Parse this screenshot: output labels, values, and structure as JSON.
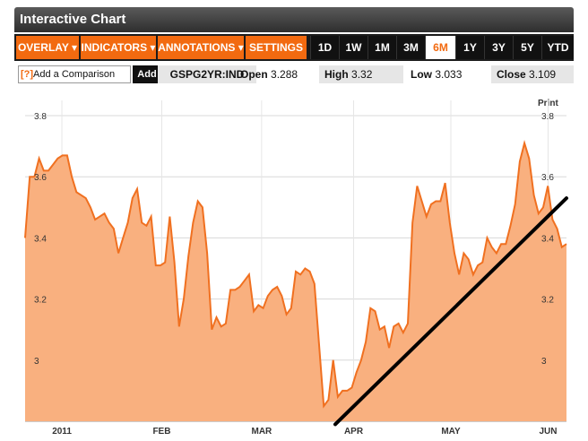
{
  "header": {
    "title": "Interactive Chart"
  },
  "toolbar": {
    "menus": [
      {
        "label": "OVERLAY ▾"
      },
      {
        "label": "INDICATORS ▾"
      },
      {
        "label": "ANNOTATIONS ▾"
      },
      {
        "label": "SETTINGS ▾"
      }
    ],
    "ranges": [
      "1D",
      "1W",
      "1M",
      "3M",
      "6M",
      "1Y",
      "3Y",
      "5Y",
      "YTD"
    ],
    "active_range": "6M"
  },
  "comparison": {
    "prefix": "[?]",
    "placeholder": "Add a Comparison",
    "add_label": "Add"
  },
  "quote": {
    "ticker": "GSPG2YR:IND",
    "open_label": "Open",
    "open": "3.288",
    "high_label": "High",
    "high": "3.32",
    "low_label": "Low",
    "low": "3.033",
    "close_label": "Close",
    "close": "3.109"
  },
  "print_label": "Print",
  "colors": {
    "accent": "#f26a10",
    "area_fill": "#f9b07f",
    "line": "#f07020",
    "trendline": "#000000"
  },
  "chart_data": {
    "type": "area",
    "y_ticks": [
      "3",
      "3.2",
      "3.4",
      "3.6",
      "3.8"
    ],
    "ylim": [
      2.8,
      3.85
    ],
    "x_labels": [
      "2011",
      "FEB",
      "MAR",
      "APR",
      "MAY",
      "JUN"
    ],
    "x_label_positions": [
      7,
      26,
      45,
      62.5,
      81,
      99.5
    ],
    "xlim": [
      0,
      103
    ],
    "grid": true,
    "values": [
      3.4,
      3.6,
      3.6,
      3.66,
      3.62,
      3.62,
      3.64,
      3.66,
      3.67,
      3.67,
      3.6,
      3.55,
      3.54,
      3.53,
      3.5,
      3.46,
      3.47,
      3.48,
      3.45,
      3.43,
      3.35,
      3.4,
      3.45,
      3.53,
      3.56,
      3.45,
      3.44,
      3.47,
      3.31,
      3.31,
      3.32,
      3.47,
      3.32,
      3.11,
      3.2,
      3.34,
      3.45,
      3.52,
      3.5,
      3.35,
      3.1,
      3.14,
      3.11,
      3.12,
      3.23,
      3.23,
      3.24,
      3.26,
      3.28,
      3.16,
      3.18,
      3.17,
      3.21,
      3.23,
      3.24,
      3.21,
      3.15,
      3.17,
      3.29,
      3.28,
      3.3,
      3.29,
      3.25,
      3.05,
      2.85,
      2.87,
      3.0,
      2.88,
      2.9,
      2.9,
      2.91,
      2.96,
      3.0,
      3.06,
      3.17,
      3.16,
      3.1,
      3.11,
      3.04,
      3.11,
      3.12,
      3.09,
      3.12,
      3.45,
      3.57,
      3.52,
      3.47,
      3.51,
      3.52,
      3.52,
      3.58,
      3.45,
      3.35,
      3.28,
      3.35,
      3.33,
      3.28,
      3.31,
      3.32,
      3.4,
      3.37,
      3.35,
      3.38,
      3.38,
      3.44,
      3.51,
      3.65,
      3.71,
      3.66,
      3.54,
      3.48,
      3.5,
      3.57,
      3.46,
      3.43,
      3.37,
      3.38
    ],
    "trendline": {
      "from": [
        59,
        2.79
      ],
      "to": [
        103,
        3.53
      ]
    }
  }
}
